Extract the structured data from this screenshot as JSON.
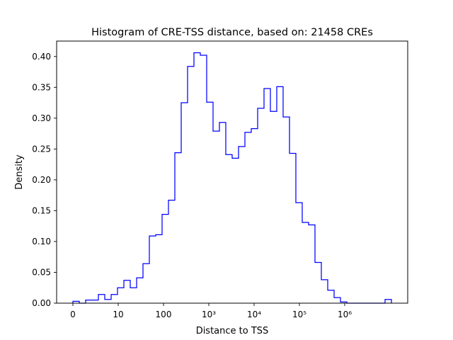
{
  "chart_data": {
    "type": "histogram",
    "title": "Histogram of CRE-TSS distance, based on: 21458 CREs",
    "xlabel": "Distance to TSS",
    "ylabel": "Density",
    "x_scale": "symlog (linear from 0 to 10, logarithmic above)",
    "ylim": [
      0,
      0.425
    ],
    "grid": false,
    "line_color": "#0000ff",
    "x_ticks": [
      {
        "value": 0,
        "label": "0"
      },
      {
        "value": 10,
        "label": "10"
      },
      {
        "value": 100,
        "label": "100"
      },
      {
        "value": 1000,
        "label": "10³"
      },
      {
        "value": 10000,
        "label": "10⁴"
      },
      {
        "value": 100000,
        "label": "10⁵"
      },
      {
        "value": 1000000,
        "label": "10⁶"
      }
    ],
    "y_ticks": [
      "0.00",
      "0.05",
      "0.10",
      "0.15",
      "0.20",
      "0.25",
      "0.30",
      "0.35",
      "0.40"
    ],
    "densities": [
      0.003,
      0.0,
      0.005,
      0.005,
      0.014,
      0.006,
      0.014,
      0.025,
      0.037,
      0.025,
      0.041,
      0.064,
      0.109,
      0.111,
      0.144,
      0.167,
      0.244,
      0.325,
      0.384,
      0.406,
      0.402,
      0.326,
      0.279,
      0.293,
      0.241,
      0.235,
      0.254,
      0.277,
      0.283,
      0.316,
      0.348,
      0.311,
      0.351,
      0.302,
      0.243,
      0.163,
      0.131,
      0.127,
      0.066,
      0.038,
      0.021,
      0.009,
      0.002,
      0.0,
      0.0,
      0.0,
      0.0,
      0.0,
      0.0,
      0.006
    ]
  }
}
